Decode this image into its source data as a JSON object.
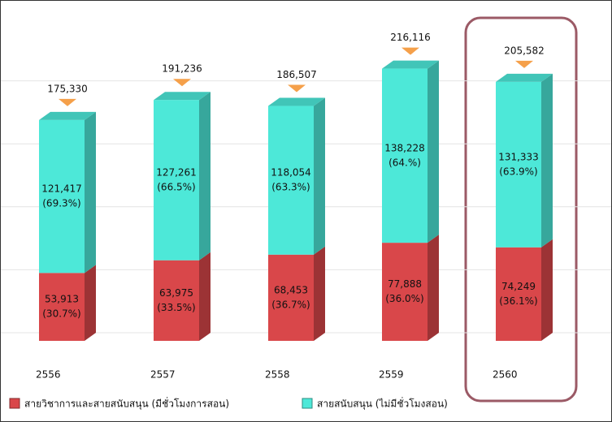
{
  "chart_data": {
    "type": "bar",
    "stacked": true,
    "categories": [
      "2556",
      "2557",
      "2558",
      "2559",
      "2560"
    ],
    "series": [
      {
        "name": "สายวิชาการและสายสนับสนุน (มีชั่วโมงการสอน)",
        "color": "#d9474a",
        "values": [
          53913,
          63975,
          68453,
          77888,
          74249
        ],
        "value_labels": [
          "53,913",
          "63,975",
          "68,453",
          "77,888",
          "74,249"
        ],
        "share_labels": [
          "(30.7%)",
          "(33.5%)",
          "(36.7%)",
          "(36.0%)",
          "(36.1%)"
        ]
      },
      {
        "name": "สายสนับสนุน (ไม่มีชั่วโมงสอน)",
        "color": "#4de8d8",
        "values": [
          121417,
          127261,
          118054,
          138228,
          131333
        ],
        "value_labels": [
          "121,417",
          "127,261",
          "118,054",
          "138,228",
          "131,333"
        ],
        "share_labels": [
          "(69.3%)",
          "(66.5%)",
          "(63.3%)",
          "(64.%)",
          "(63.9%)"
        ]
      }
    ],
    "totals": [
      175330,
      191236,
      186507,
      216116,
      205582
    ],
    "total_labels": [
      "175,330",
      "191,236",
      "186,507",
      "216,116",
      "205,582"
    ],
    "total_marker_color": "#f5a04a",
    "ylim": [
      0,
      250000
    ],
    "yticks": [
      0,
      50000,
      100000,
      150000,
      200000
    ],
    "grid": true
  }
}
